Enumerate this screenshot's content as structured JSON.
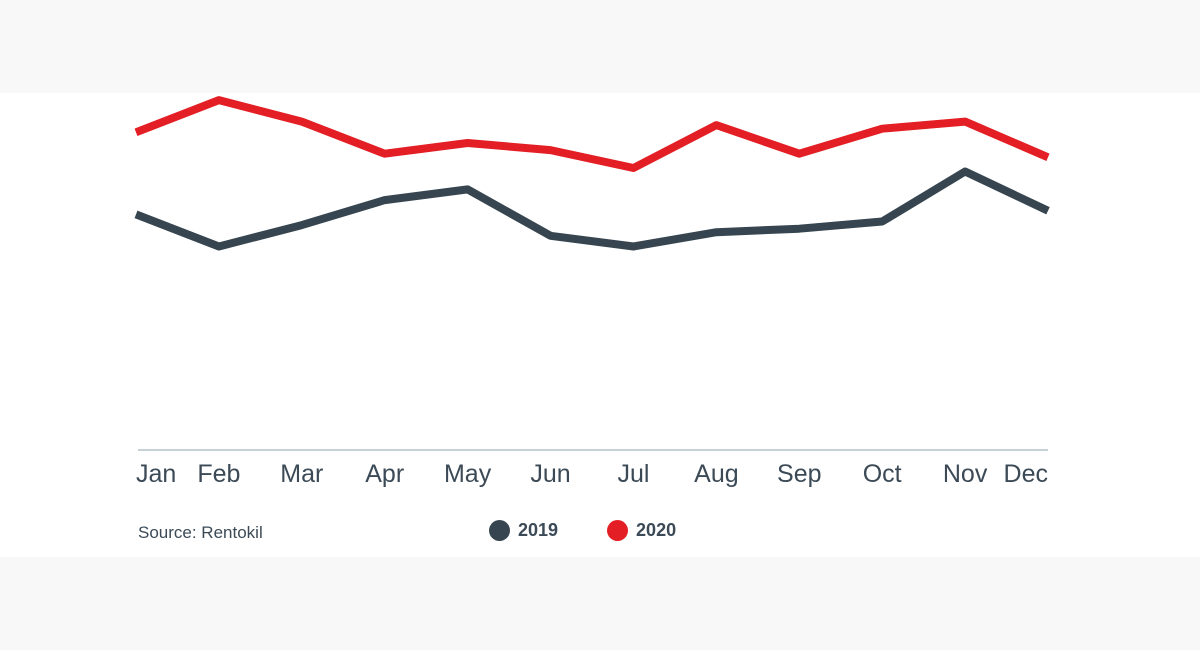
{
  "chart_data": {
    "type": "line",
    "title": "",
    "xlabel": "",
    "ylabel": "",
    "categories": [
      "Jan",
      "Feb",
      "Mar",
      "Apr",
      "May",
      "Jun",
      "Jul",
      "Aug",
      "Sep",
      "Oct",
      "Nov",
      "Dec"
    ],
    "ylim": [
      0,
      100
    ],
    "grid": false,
    "legend_position": "bottom-center",
    "series": [
      {
        "name": "2019",
        "color": "#36454f",
        "values": [
          66,
          57,
          63,
          70,
          73,
          60,
          57,
          61,
          62,
          64,
          78,
          67
        ]
      },
      {
        "name": "2020",
        "color": "#e31e24",
        "values": [
          89,
          98,
          92,
          83,
          86,
          84,
          79,
          91,
          83,
          90,
          92,
          82
        ]
      }
    ]
  },
  "source": "Source: Rentokil",
  "colors": {
    "axis": "#c7d2d8",
    "text": "#3b4a56"
  }
}
